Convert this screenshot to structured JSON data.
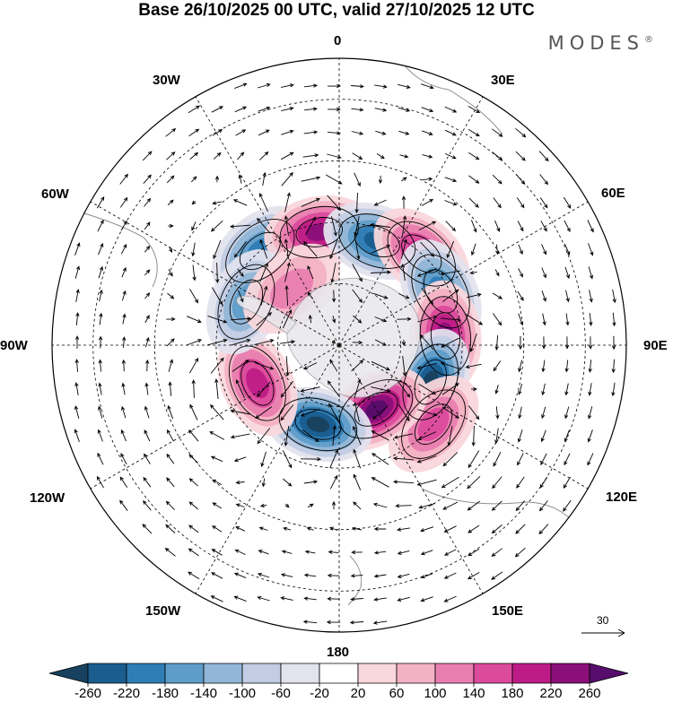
{
  "title": "Base 26/10/2025 00 UTC, valid 27/10/2025 12 UTC",
  "brand": "MODES",
  "brand_mark": "®",
  "longitude_labels": {
    "n": "0",
    "ne30": "30E",
    "e60": "60E",
    "e90": "90E",
    "e120": "120E",
    "e150": "150E",
    "s180": "180",
    "w150": "150W",
    "w120": "120W",
    "w90": "90W",
    "w60": "60W",
    "w30": "30W"
  },
  "reference_vector_label": "30",
  "colorbar": {
    "ticks": [
      "-260",
      "-220",
      "-180",
      "-140",
      "-100",
      "-60",
      "-20",
      "20",
      "60",
      "100",
      "140",
      "180",
      "220",
      "260"
    ],
    "colors": [
      "#17415f",
      "#1a5d8e",
      "#2f7db5",
      "#5f9dc9",
      "#92b6d8",
      "#c2cde4",
      "#e3e3ee",
      "#ffffff",
      "#f9d7dc",
      "#f3b2c4",
      "#e97fb0",
      "#dc4a9c",
      "#bd1c86",
      "#8a0f79",
      "#560d6b"
    ]
  },
  "anomaly_centers": [
    {
      "lon": -40,
      "colat_deg": 30,
      "value": -180
    },
    {
      "lon": -10,
      "colat_deg": 28,
      "value": 200
    },
    {
      "lon": 20,
      "colat_deg": 27,
      "value": -220
    },
    {
      "lon": 42,
      "colat_deg": 30,
      "value": 180
    },
    {
      "lon": 62,
      "colat_deg": 28,
      "value": -180
    },
    {
      "lon": 85,
      "colat_deg": 26,
      "value": 200
    },
    {
      "lon": 112,
      "colat_deg": 24,
      "value": -240
    },
    {
      "lon": 130,
      "colat_deg": 30,
      "value": 150
    },
    {
      "lon": 150,
      "colat_deg": 18,
      "value": 240
    },
    {
      "lon": 195,
      "colat_deg": 20,
      "value": -250
    },
    {
      "lon": 245,
      "colat_deg": 22,
      "value": 170
    },
    {
      "lon": 295,
      "colat_deg": 25,
      "value": -140
    },
    {
      "lon": 320,
      "colat_deg": 18,
      "value": 80
    }
  ]
}
